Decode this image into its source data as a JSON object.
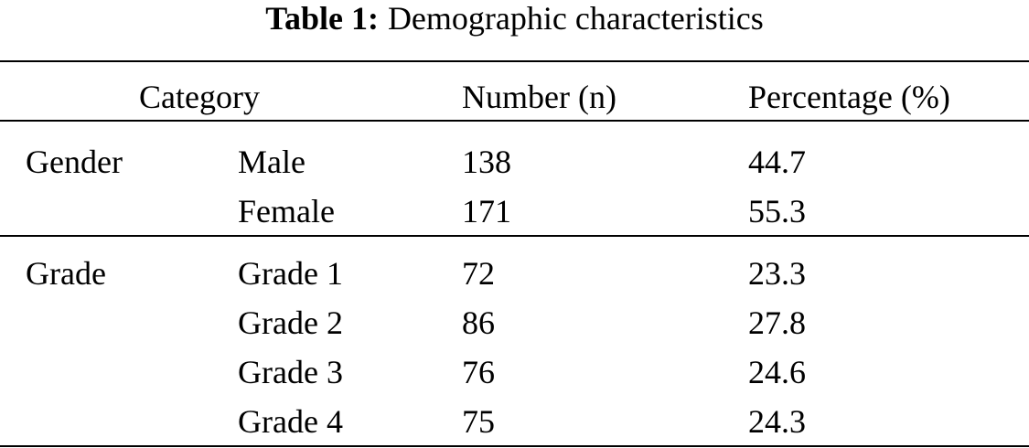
{
  "table": {
    "caption_label": "Table 1:",
    "caption": "Demographic characteristics",
    "header": [
      "Category",
      "Number (n)",
      "Percentage (%)"
    ],
    "groups": [
      {
        "name": "Gender",
        "rows": [
          [
            "Male",
            138,
            44.7
          ],
          [
            "Female",
            171,
            55.3
          ]
        ]
      },
      {
        "name": "Grade",
        "rows": [
          [
            "Grade 1",
            72,
            23.3
          ],
          [
            "Grade 2",
            86,
            27.8
          ],
          [
            "Grade 3",
            76,
            24.6
          ],
          [
            "Grade 4",
            75,
            24.3
          ]
        ]
      }
    ]
  }
}
